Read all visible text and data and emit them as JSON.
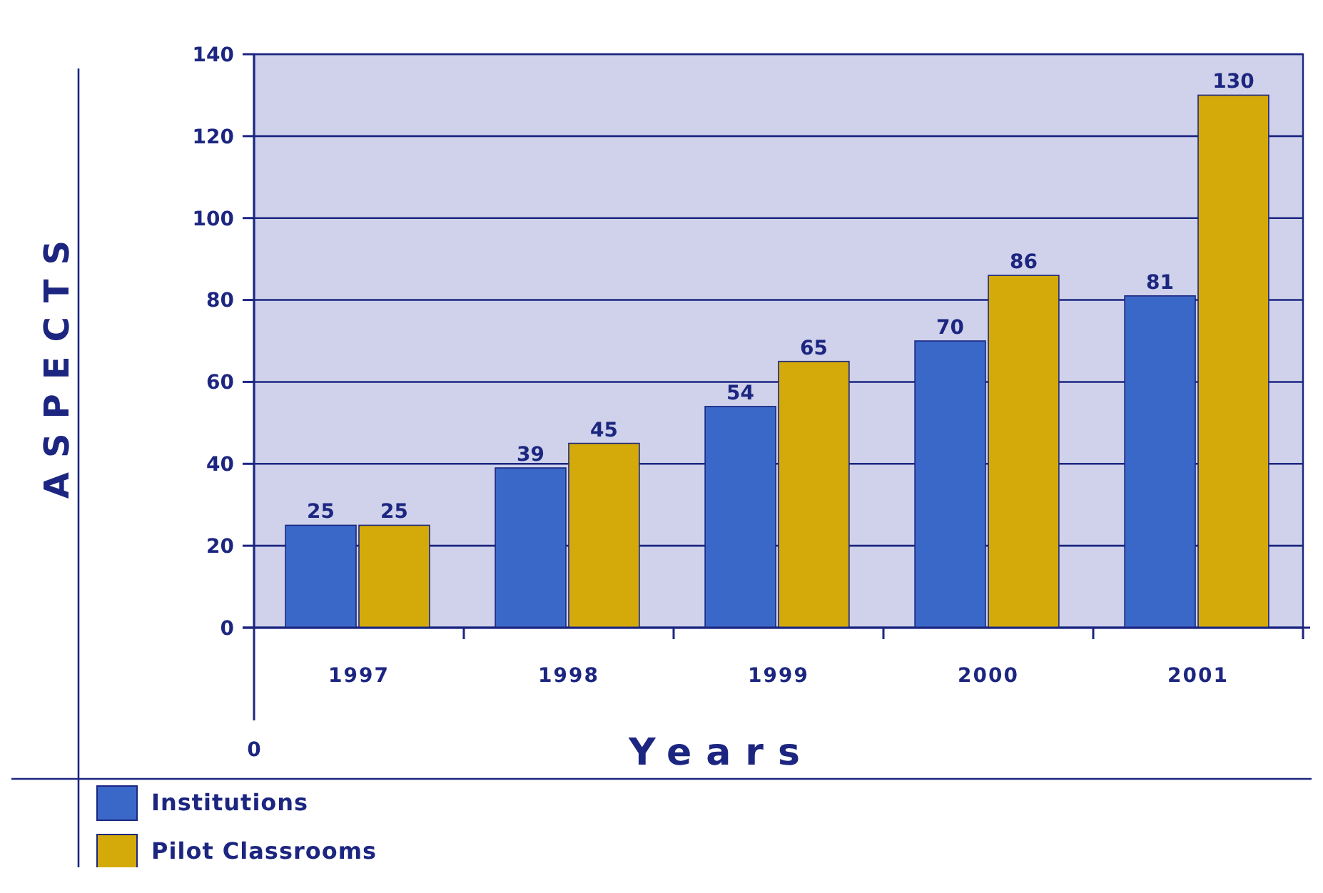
{
  "chart_data": {
    "type": "bar",
    "xlabel": "Years",
    "ylabel": "ASPECTS",
    "categories": [
      "1997",
      "1998",
      "1999",
      "2000",
      "2001"
    ],
    "series": [
      {
        "name": "Institutions",
        "color": "#3a68c8",
        "values": [
          25,
          39,
          54,
          70,
          81
        ]
      },
      {
        "name": "Pilot Classrooms",
        "color": "#d4aa0a",
        "values": [
          25,
          45,
          65,
          86,
          130
        ]
      }
    ],
    "ylim": [
      0,
      140
    ],
    "yticks": [
      0,
      20,
      40,
      60,
      80,
      100,
      120,
      140
    ],
    "grid": "y",
    "data_labels": true,
    "legend": "bottom",
    "annotations": [
      "0"
    ]
  }
}
